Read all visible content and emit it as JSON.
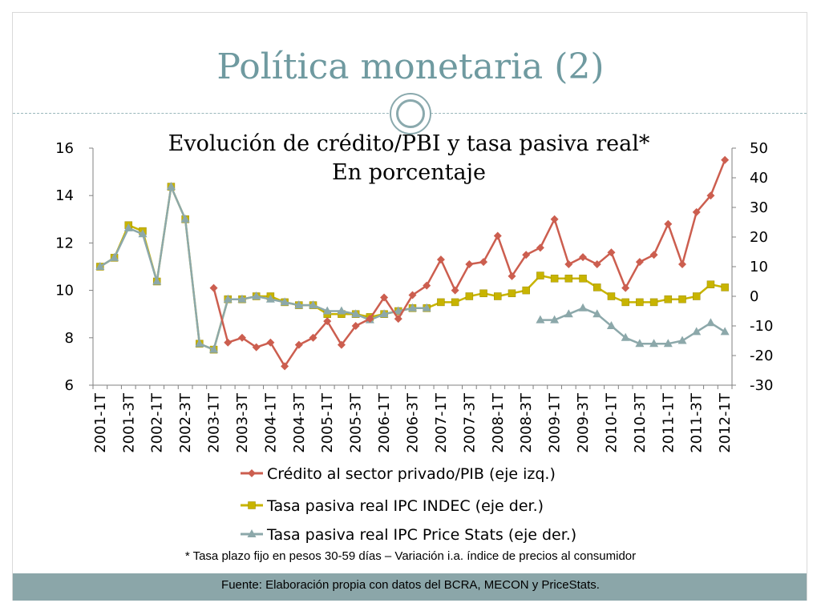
{
  "slide": {
    "title": "Política monetaria (2)",
    "footnote": "* Tasa plazo fijo en pesos 30-59 días – Variación i.a. índice de precios al consumidor",
    "source": "Fuente: Elaboración propia con datos del BCRA, MECON y PriceStats."
  },
  "colors": {
    "credito": "#cc5e4f",
    "indec": "#c8b400",
    "pricestats": "#8ca8aa",
    "title": "#6f9aa0",
    "footer": "#8ba6a9"
  },
  "chart_data": {
    "type": "line",
    "title": "Evolución de crédito/PBI y tasa pasiva real*",
    "subtitle": "En porcentaje",
    "legend_position": "bottom",
    "categories": [
      "2001-1T",
      "2001-2T",
      "2001-3T",
      "2001-4T",
      "2002-1T",
      "2002-2T",
      "2002-3T",
      "2002-4T",
      "2003-1T",
      "2003-2T",
      "2003-3T",
      "2003-4T",
      "2004-1T",
      "2004-2T",
      "2004-3T",
      "2004-4T",
      "2005-1T",
      "2005-2T",
      "2005-3T",
      "2005-4T",
      "2006-1T",
      "2006-2T",
      "2006-3T",
      "2006-4T",
      "2007-1T",
      "2007-2T",
      "2007-3T",
      "2007-4T",
      "2008-1T",
      "2008-2T",
      "2008-3T",
      "2008-4T",
      "2009-1T",
      "2009-2T",
      "2009-3T",
      "2009-4T",
      "2010-1T",
      "2010-2T",
      "2010-3T",
      "2010-4T",
      "2011-1T",
      "2011-2T",
      "2011-3T",
      "2011-4T",
      "2012-1T"
    ],
    "tick_labels": [
      "2001-1T",
      "2001-3T",
      "2002-1T",
      "2002-3T",
      "2003-1T",
      "2003-3T",
      "2004-1T",
      "2004-3T",
      "2005-1T",
      "2005-3T",
      "2006-1T",
      "2006-3T",
      "2007-1T",
      "2007-3T",
      "2008-1T",
      "2008-3T",
      "2009-1T",
      "2009-3T",
      "2010-1T",
      "2010-3T",
      "2011-1T",
      "2011-3T",
      "2012-1T"
    ],
    "y_left": {
      "min": 6,
      "max": 16,
      "ticks": [
        6,
        8,
        10,
        12,
        14,
        16
      ]
    },
    "y_right": {
      "min": -30,
      "max": 50,
      "ticks": [
        -30,
        -20,
        -10,
        0,
        10,
        20,
        30,
        40,
        50
      ]
    },
    "series": [
      {
        "name": "Crédito al sector privado/PIB (eje izq.)",
        "axis": "left",
        "marker": "diamond",
        "values": [
          null,
          null,
          null,
          null,
          null,
          null,
          null,
          null,
          10.1,
          7.8,
          8.0,
          7.6,
          7.8,
          6.8,
          7.7,
          8.0,
          8.7,
          7.7,
          8.5,
          8.8,
          9.7,
          8.8,
          9.8,
          10.2,
          11.3,
          10.0,
          11.1,
          11.2,
          12.3,
          10.6,
          11.5,
          11.8,
          13.0,
          11.1,
          11.4,
          11.1,
          11.6,
          10.1,
          11.2,
          11.5,
          12.8,
          11.1,
          13.3,
          14.0,
          15.5
        ]
      },
      {
        "name": "Tasa pasiva real IPC INDEC (eje der.)",
        "axis": "right",
        "marker": "square",
        "values": [
          10,
          13,
          24,
          22,
          5,
          37,
          26,
          -16,
          -18,
          -1,
          -1,
          0,
          0,
          -2,
          -3,
          -3,
          -6,
          -6,
          -6,
          -7,
          -6,
          -5,
          -4,
          -4,
          -2,
          -2,
          0,
          1,
          0,
          1,
          2,
          7,
          6,
          6,
          6,
          3,
          0,
          -2,
          -2,
          -2,
          -1,
          -1,
          0,
          4,
          3
        ]
      },
      {
        "name": "Tasa pasiva real IPC Price Stats (eje der.)",
        "axis": "right",
        "marker": "triangle",
        "values": [
          10,
          13,
          23,
          21,
          5,
          37,
          26,
          -16,
          -18,
          -1,
          -1,
          0,
          -1,
          -2,
          -3,
          -3,
          -5,
          -5,
          -6,
          -8,
          -6,
          -5,
          -4,
          -4,
          null,
          null,
          null,
          null,
          null,
          null,
          null,
          -8,
          -8,
          -6,
          -4,
          -6,
          -10,
          -14,
          -16,
          -16,
          -16,
          -15,
          -12,
          -9,
          -12
        ]
      }
    ]
  }
}
